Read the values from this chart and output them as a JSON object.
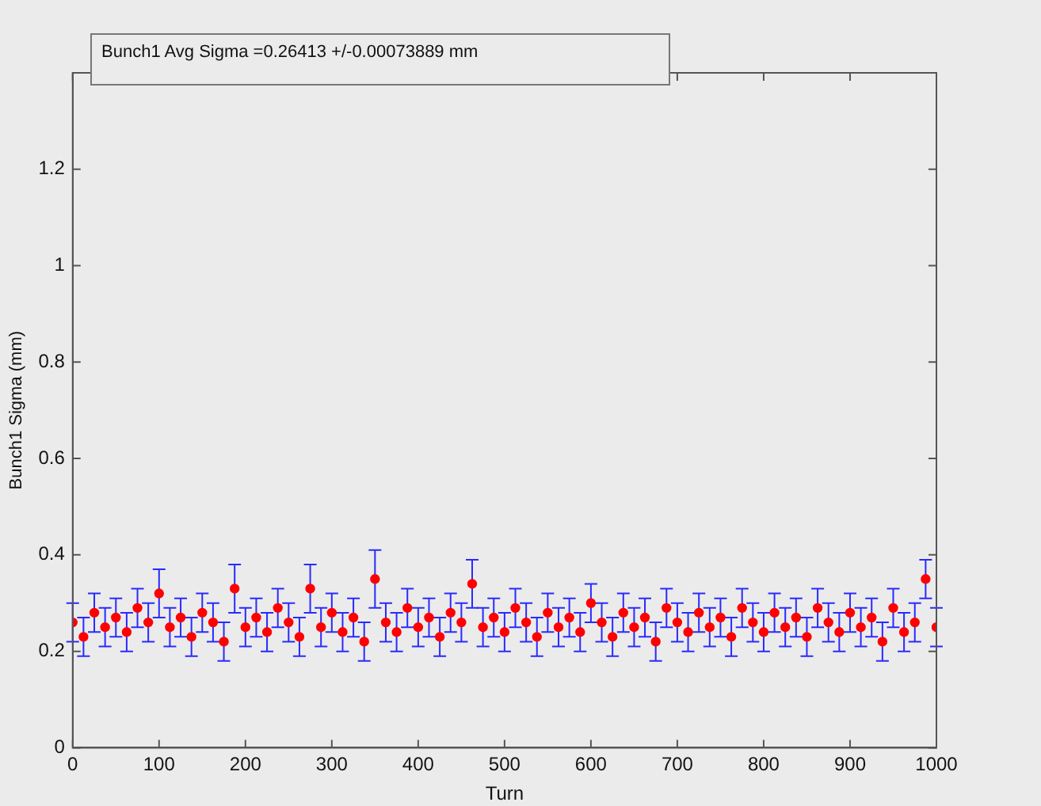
{
  "chart_data": {
    "type": "scatter",
    "xlabel": "Turn",
    "ylabel": "Bunch1 Sigma (mm)",
    "annotations": [
      "Bunch1 Avg Sigma =0.26413 +/-0.00073889 mm"
    ],
    "x": [
      0,
      12.5,
      25,
      37.5,
      50,
      62.5,
      75,
      87.5,
      100,
      112.5,
      125,
      137.5,
      150,
      162.5,
      175,
      187.5,
      200,
      212.5,
      225,
      237.5,
      250,
      262.5,
      275,
      287.5,
      300,
      312.5,
      325,
      337.5,
      350,
      362.5,
      375,
      387.5,
      400,
      412.5,
      425,
      437.5,
      450,
      462.5,
      475,
      487.5,
      500,
      512.5,
      525,
      537.5,
      550,
      562.5,
      575,
      587.5,
      600,
      612.5,
      625,
      637.5,
      650,
      662.5,
      675,
      687.5,
      700,
      712.5,
      725,
      737.5,
      750,
      762.5,
      775,
      787.5,
      800,
      812.5,
      825,
      837.5,
      850,
      862.5,
      875,
      887.5,
      900,
      912.5,
      925,
      937.5,
      950,
      962.5,
      975,
      987.5,
      1000
    ],
    "series": [
      {
        "color": "#ff0000",
        "values": [
          0.26,
          0.23,
          0.28,
          0.25,
          0.27,
          0.24,
          0.29,
          0.26,
          0.32,
          0.25,
          0.27,
          0.23,
          0.28,
          0.26,
          0.22,
          0.33,
          0.25,
          0.27,
          0.24,
          0.29,
          0.26,
          0.23,
          0.33,
          0.25,
          0.28,
          0.24,
          0.27,
          0.22,
          0.35,
          0.26,
          0.24,
          0.29,
          0.25,
          0.27,
          0.23,
          0.28,
          0.26,
          0.34,
          0.25,
          0.27,
          0.24,
          0.29,
          0.26,
          0.23,
          0.28,
          0.25,
          0.27,
          0.24,
          0.3,
          0.26,
          0.23,
          0.28,
          0.25,
          0.27,
          0.22,
          0.29,
          0.26,
          0.24,
          0.28,
          0.25,
          0.27,
          0.23,
          0.29,
          0.26,
          0.24,
          0.28,
          0.25,
          0.27,
          0.23,
          0.29,
          0.26,
          0.24,
          0.28,
          0.25,
          0.27,
          0.22,
          0.29,
          0.24,
          0.26,
          0.35,
          0.25
        ],
        "errors": [
          0.04,
          0.04,
          0.04,
          0.04,
          0.04,
          0.04,
          0.04,
          0.04,
          0.05,
          0.04,
          0.04,
          0.04,
          0.04,
          0.04,
          0.04,
          0.05,
          0.04,
          0.04,
          0.04,
          0.04,
          0.04,
          0.04,
          0.05,
          0.04,
          0.04,
          0.04,
          0.04,
          0.04,
          0.06,
          0.04,
          0.04,
          0.04,
          0.04,
          0.04,
          0.04,
          0.04,
          0.04,
          0.05,
          0.04,
          0.04,
          0.04,
          0.04,
          0.04,
          0.04,
          0.04,
          0.04,
          0.04,
          0.04,
          0.04,
          0.04,
          0.04,
          0.04,
          0.04,
          0.04,
          0.04,
          0.04,
          0.04,
          0.04,
          0.04,
          0.04,
          0.04,
          0.04,
          0.04,
          0.04,
          0.04,
          0.04,
          0.04,
          0.04,
          0.04,
          0.04,
          0.04,
          0.04,
          0.04,
          0.04,
          0.04,
          0.04,
          0.04,
          0.04,
          0.04,
          0.04,
          0.04
        ]
      }
    ],
    "xlim": [
      0,
      1000
    ],
    "xticks": [
      0,
      100,
      200,
      300,
      400,
      500,
      600,
      700,
      800,
      900,
      1000
    ],
    "ylim": [
      0,
      1.4
    ],
    "yticks": [
      0,
      0.2,
      0.4,
      0.6,
      0.8,
      1,
      1.2
    ],
    "grid": false,
    "legend": false,
    "marker": "circle"
  }
}
